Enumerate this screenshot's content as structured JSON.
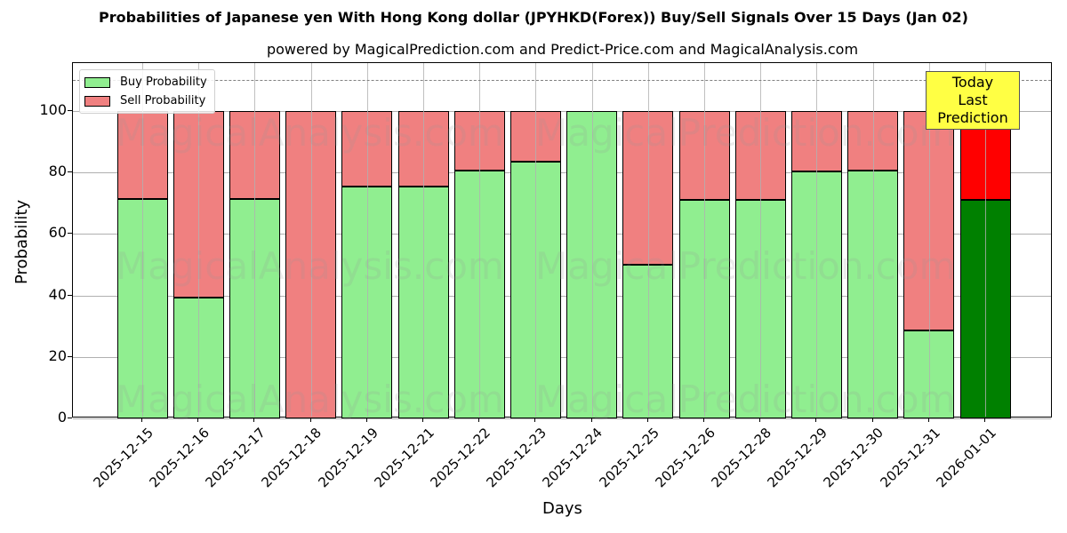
{
  "header": {
    "title": "Probabilities of Japanese yen With Hong Kong dollar (JPYHKD(Forex)) Buy/Sell Signals Over 15 Days (Jan 02)",
    "subtitle": "powered by MagicalPrediction.com and Predict-Price.com and MagicalAnalysis.com"
  },
  "legend": {
    "buy_label": "Buy Probability",
    "sell_label": "Sell Probability"
  },
  "annotation": {
    "line1": "Today",
    "line2": "Last Prediction"
  },
  "axes": {
    "xlabel": "Days",
    "ylabel": "Probability",
    "yticks": [
      "0",
      "20",
      "40",
      "60",
      "80",
      "100"
    ]
  },
  "watermarks": [
    "MagicalAnalysis.com",
    "MagicalPrediction.com"
  ],
  "colors": {
    "buy": "#90ee90",
    "sell": "#f08080",
    "buy_today": "#008000",
    "sell_today": "#ff0000",
    "annotation_bg": "#ffff44"
  },
  "chart_data": {
    "type": "bar",
    "stacked": true,
    "title": "Probabilities of Japanese yen With Hong Kong dollar (JPYHKD(Forex)) Buy/Sell Signals Over 15 Days (Jan 02)",
    "subtitle": "powered by MagicalPrediction.com and Predict-Price.com and MagicalAnalysis.com",
    "xlabel": "Days",
    "ylabel": "Probability",
    "ylim": [
      0,
      115.6
    ],
    "yticks": [
      0,
      20,
      40,
      60,
      80,
      100
    ],
    "grid": true,
    "legend_position": "upper left",
    "reference_line": {
      "y": 110,
      "style": "dashed",
      "color": "#808080"
    },
    "categories": [
      "2025-12-15",
      "2025-12-16",
      "2025-12-17",
      "2025-12-18",
      "2025-12-19",
      "2025-12-21",
      "2025-12-22",
      "2025-12-23",
      "2025-12-24",
      "2025-12-25",
      "2025-12-26",
      "2025-12-28",
      "2025-12-29",
      "2025-12-30",
      "2025-12-31",
      "2026-01-01"
    ],
    "series": [
      {
        "name": "Buy Probability",
        "values": [
          71.4,
          39.3,
          71.4,
          0,
          75.5,
          75.5,
          80.5,
          83.4,
          100,
          50.1,
          71.2,
          71.2,
          80.3,
          80.5,
          28.5,
          71.2
        ]
      },
      {
        "name": "Sell Probability",
        "values": [
          28.6,
          60.7,
          28.6,
          100,
          24.5,
          24.5,
          19.5,
          16.6,
          0,
          49.9,
          28.8,
          28.8,
          19.7,
          19.5,
          71.5,
          28.8
        ]
      }
    ],
    "annotations": [
      {
        "text": "Today\nLast Prediction",
        "x": "2026-01-01"
      }
    ],
    "highlight_last_bar": true
  }
}
